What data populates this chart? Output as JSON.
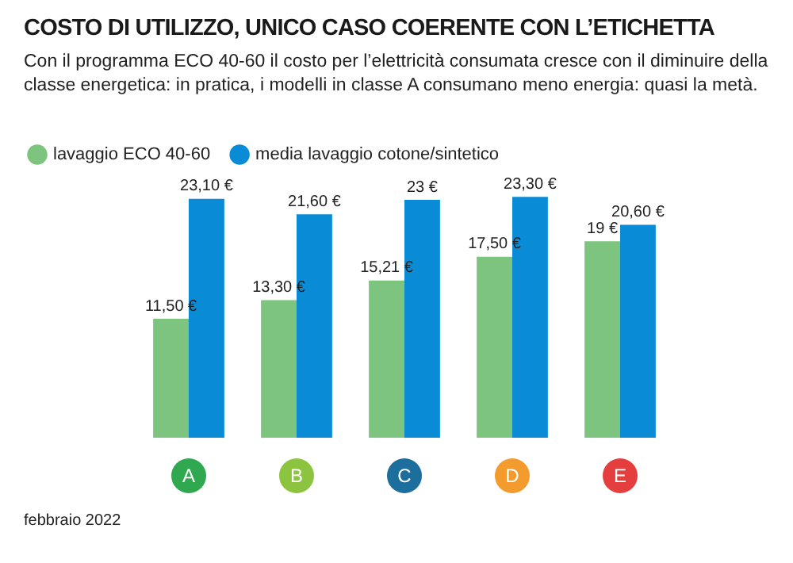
{
  "chart_data": {
    "type": "bar",
    "title": "COSTO DI UTILIZZO, UNICO CASO COERENTE CON L’ETICHETTA",
    "subtitle": "Con il programma ECO 40-60 il costo per l’elettricità consumata cresce con il diminuire della classe energetica: in pratica, i modelli in classe A consumano meno energia: quasi la metà.",
    "categories": [
      "A",
      "B",
      "C",
      "D",
      "E"
    ],
    "series": [
      {
        "name": "lavaggio ECO 40-60",
        "color": "#7dc47f",
        "values": [
          11.5,
          13.3,
          15.21,
          17.5,
          19
        ],
        "value_labels": [
          "11,50 €",
          "13,30 €",
          "15,21 €",
          "17,50 €",
          "19 €"
        ]
      },
      {
        "name": "media lavaggio cotone/sintetico",
        "color": "#0a8bd6",
        "values": [
          23.1,
          21.6,
          23,
          23.3,
          20.6
        ],
        "value_labels": [
          "23,10 €",
          "21,60 €",
          "23 €",
          "23,30 €",
          "20,60 €"
        ]
      }
    ],
    "tick_labels": "x",
    "legend": "top left",
    "grid": false,
    "annotations": [
      "febbraio 2022"
    ]
  }
}
